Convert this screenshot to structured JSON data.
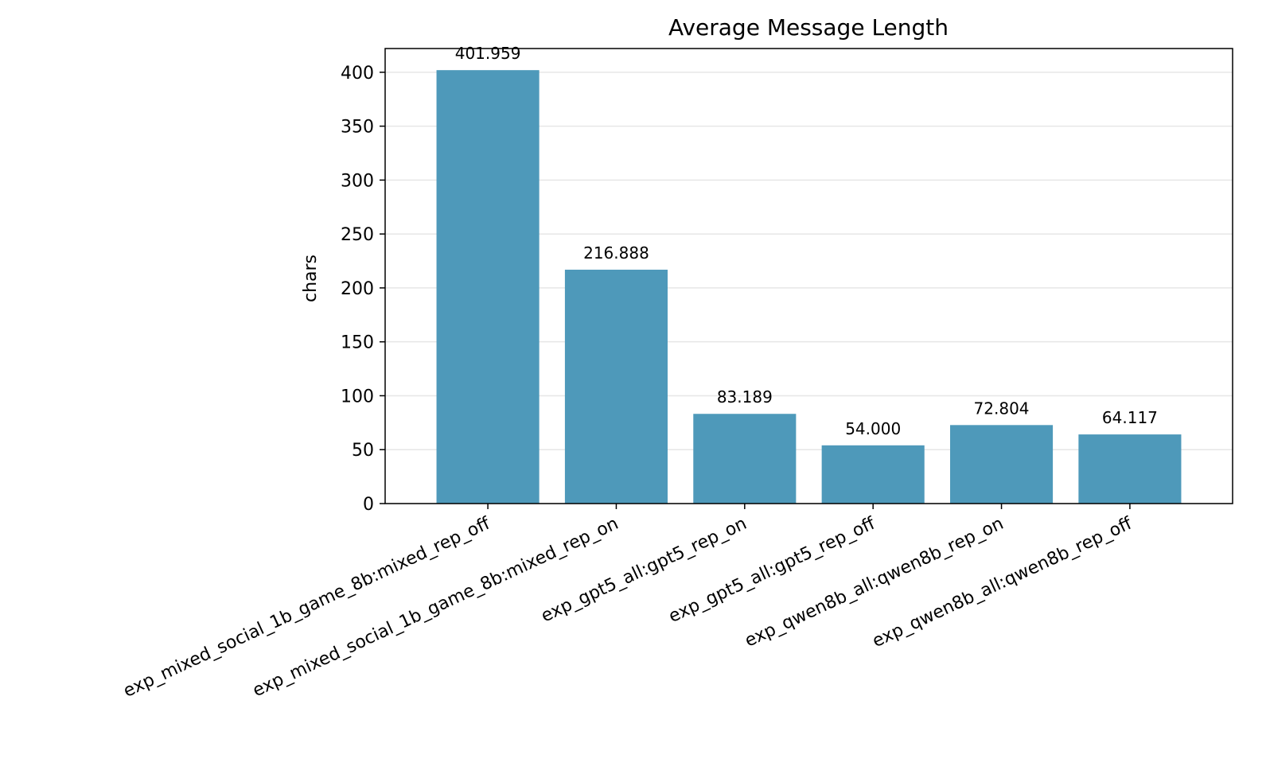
{
  "chart_data": {
    "type": "bar",
    "title": "Average Message Length",
    "xlabel": "",
    "ylabel": "chars",
    "categories": [
      "exp_mixed_social_1b_game_8b:mixed_rep_off",
      "exp_mixed_social_1b_game_8b:mixed_rep_on",
      "exp_gpt5_all:gpt5_rep_on",
      "exp_gpt5_all:gpt5_rep_off",
      "exp_qwen8b_all:qwen8b_rep_on",
      "exp_qwen8b_all:qwen8b_rep_off"
    ],
    "values": [
      401.959,
      216.888,
      83.189,
      54.0,
      72.804,
      64.117
    ],
    "value_labels": [
      "401.959",
      "216.888",
      "83.189",
      "54.000",
      "72.804",
      "64.117"
    ],
    "ylim": [
      0,
      422
    ],
    "yticks": [
      0,
      50,
      100,
      150,
      200,
      250,
      300,
      350,
      400
    ],
    "ytick_labels": [
      "0",
      "50",
      "100",
      "150",
      "200",
      "250",
      "300",
      "350",
      "400"
    ],
    "grid": "horizontal",
    "bar_color": "#4e99ba",
    "grid_color": "#e6e6e6"
  }
}
